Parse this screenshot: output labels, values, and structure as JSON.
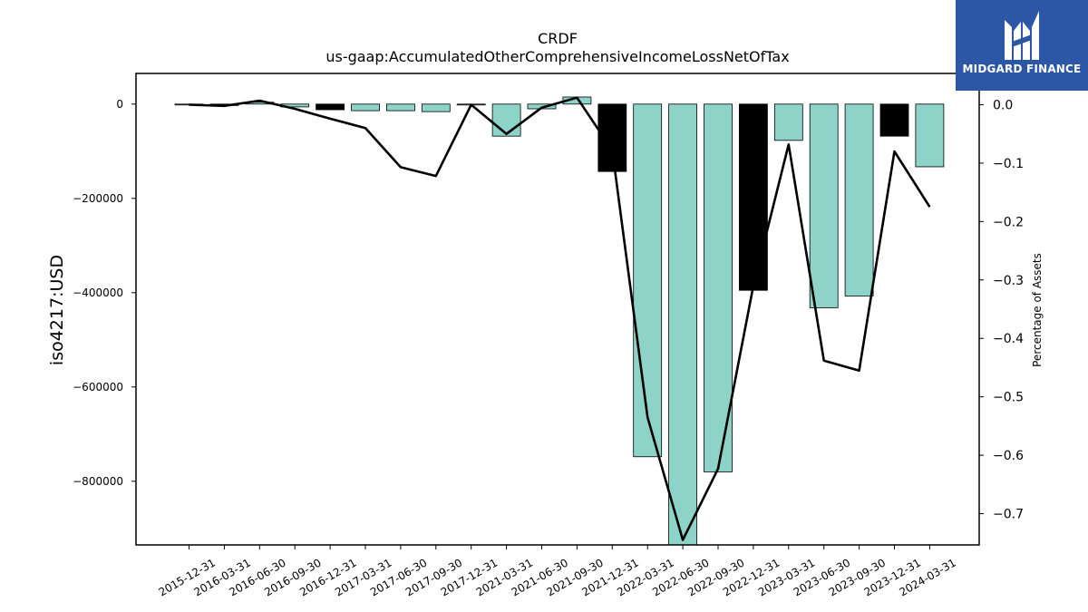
{
  "brand": {
    "name": "MIDGARD FINANCE",
    "logo_icon": "midgard-logo-mark",
    "color": "#2b57a6"
  },
  "chart_data": {
    "type": "bar",
    "title": "CRDF",
    "subtitle": "us-gaap:AccumulatedOtherComprehensiveIncomeLossNetOfTax",
    "ylabel": "iso4217:USD",
    "y2label": "Percentage of Assets",
    "categories": [
      "2015-12-31",
      "2016-03-31",
      "2016-06-30",
      "2016-09-30",
      "2016-12-31",
      "2017-03-31",
      "2017-06-30",
      "2017-09-30",
      "2017-12-31",
      "2021-03-31",
      "2021-06-30",
      "2021-09-30",
      "2021-12-31",
      "2022-03-31",
      "2022-06-30",
      "2022-09-30",
      "2022-12-31",
      "2023-03-31",
      "2023-06-30",
      "2023-09-30",
      "2023-12-31",
      "2024-03-31"
    ],
    "series": [
      {
        "axis": "left",
        "kind": "bar",
        "values": [
          -1500,
          -3000,
          4000,
          -6000,
          -12000,
          -14000,
          -14000,
          -16000,
          -1000,
          -68000,
          -10000,
          15000,
          -143000,
          -748000,
          -935000,
          -780000,
          -395000,
          -77000,
          -432000,
          -407000,
          -68000,
          -133000
        ],
        "colors": [
          "#8dd3c7",
          "#000000",
          "#8dd3c7",
          "#8dd3c7",
          "#000000",
          "#8dd3c7",
          "#8dd3c7",
          "#8dd3c7",
          "#8dd3c7",
          "#8dd3c7",
          "#8dd3c7",
          "#8dd3c7",
          "#000000",
          "#8dd3c7",
          "#8dd3c7",
          "#8dd3c7",
          "#000000",
          "#8dd3c7",
          "#8dd3c7",
          "#8dd3c7",
          "#000000",
          "#8dd3c7"
        ]
      },
      {
        "axis": "right",
        "kind": "line",
        "color": "#000000",
        "values": [
          0.0,
          -0.002,
          0.007,
          -0.007,
          -0.024,
          -0.04,
          -0.107,
          -0.122,
          0.0,
          -0.05,
          -0.005,
          0.012,
          -0.078,
          -0.535,
          -0.745,
          -0.623,
          -0.31,
          -0.068,
          -0.438,
          -0.455,
          -0.08,
          -0.175
        ]
      }
    ],
    "ylim": [
      -935000,
      65000
    ],
    "yticks": [
      0,
      -200000,
      -400000,
      -600000,
      -800000
    ],
    "ytick_labels": [
      "0",
      "−200000",
      "−400000",
      "−600000",
      "−800000"
    ],
    "y2lim": [
      -0.7535,
      0.0535
    ],
    "y2ticks": [
      0.0,
      -0.1,
      -0.2,
      -0.3,
      -0.4,
      -0.5,
      -0.6,
      -0.7
    ],
    "y2tick_labels": [
      "0.0",
      "−0.1",
      "−0.2",
      "−0.3",
      "−0.4",
      "−0.5",
      "−0.6",
      "−0.7"
    ],
    "grid": false,
    "legend": "none"
  }
}
